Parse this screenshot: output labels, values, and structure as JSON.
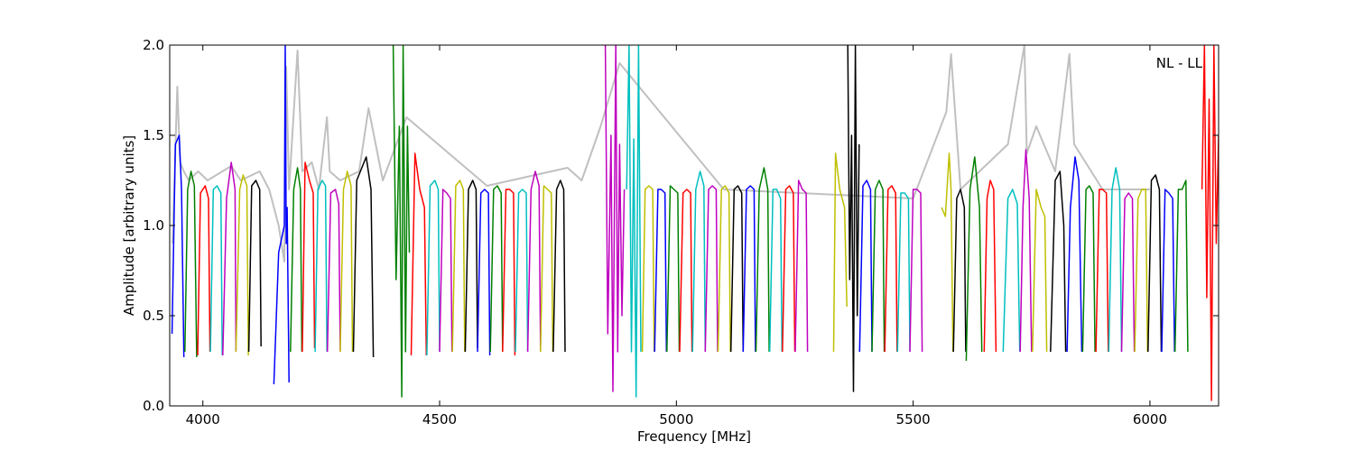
{
  "chart_data": {
    "type": "line",
    "title": "",
    "annotation": "NL - LL",
    "xlabel": "Frequency [MHz]",
    "ylabel": "Amplitude [arbitrary units]",
    "xlim": [
      3930,
      6145
    ],
    "ylim": [
      0.0,
      2.0
    ],
    "x_ticks": [
      4000,
      4500,
      5000,
      5500,
      6000
    ],
    "y_ticks": [
      0.0,
      0.5,
      1.0,
      1.5,
      2.0
    ],
    "x_tick_labels": [
      "4000",
      "4500",
      "5000",
      "5500",
      "6000"
    ],
    "y_tick_labels": [
      "0.0",
      "0.5",
      "1.0",
      "1.5",
      "2.0"
    ],
    "grid": false,
    "legend": null,
    "colors": [
      "#0000ff",
      "#008000",
      "#ff0000",
      "#00bfbf",
      "#bf00bf",
      "#bfbf00",
      "#000000"
    ],
    "background_series_color": "#c0c0c0",
    "band_start": 3935,
    "band_width": 26.5,
    "series": [
      {
        "color": "#c0c0c0",
        "x": [
          3936,
          3946,
          3952,
          3960,
          3970,
          3990,
          4010,
          4060,
          4080,
          4120,
          4140,
          4160,
          4172,
          4176,
          4182,
          4200,
          4210,
          4230,
          4245,
          4262,
          4268,
          4290,
          4330,
          4350,
          4380,
          4430,
          4600,
          4770,
          4800,
          4840,
          4880,
          5100,
          5500,
          5570,
          5580,
          5600,
          5700,
          5735,
          5740,
          5760,
          5800,
          5830,
          5840,
          5900,
          6000
        ],
        "y": [
          0.9,
          1.77,
          1.35,
          1.3,
          1.25,
          1.3,
          1.25,
          1.33,
          1.25,
          1.3,
          1.2,
          1.0,
          0.8,
          1.88,
          1.2,
          1.97,
          1.3,
          1.35,
          1.2,
          1.6,
          1.3,
          1.25,
          1.3,
          1.65,
          1.25,
          1.6,
          1.22,
          1.32,
          1.25,
          1.55,
          1.9,
          1.2,
          1.15,
          1.63,
          1.95,
          1.2,
          1.45,
          2.0,
          1.4,
          1.55,
          1.3,
          1.95,
          1.45,
          1.2,
          1.2
        ]
      },
      {
        "color": "#0000ff",
        "x": [
          3935,
          3942,
          3950,
          3955,
          3960
        ],
        "y": [
          0.4,
          1.45,
          1.5,
          1.2,
          0.27
        ]
      },
      {
        "color": "#008000",
        "x": [
          3962,
          3968,
          3975,
          3982,
          3987
        ],
        "y": [
          0.3,
          1.2,
          1.3,
          1.22,
          0.27
        ]
      },
      {
        "color": "#ff0000",
        "x": [
          3989,
          3995,
          4005,
          4012,
          4015
        ],
        "y": [
          0.28,
          1.18,
          1.22,
          1.15,
          0.3
        ]
      },
      {
        "color": "#00bfbf",
        "x": [
          4016,
          4022,
          4030,
          4038,
          4041
        ],
        "y": [
          0.3,
          1.2,
          1.22,
          1.18,
          0.28
        ]
      },
      {
        "color": "#bf00bf",
        "x": [
          4042,
          4050,
          4060,
          4068,
          4070
        ],
        "y": [
          0.28,
          1.15,
          1.35,
          1.2,
          0.3
        ]
      },
      {
        "color": "#bfbf00",
        "x": [
          4070,
          4078,
          4085,
          4093,
          4096
        ],
        "y": [
          0.3,
          1.2,
          1.28,
          1.22,
          0.28
        ]
      },
      {
        "color": "#000000",
        "x": [
          4097,
          4103,
          4112,
          4120,
          4123
        ],
        "y": [
          0.3,
          1.22,
          1.25,
          1.2,
          0.33
        ]
      },
      {
        "color": "#0000ff",
        "x": [
          4150,
          4160,
          4168,
          4172,
          4174,
          4176,
          4178,
          4182
        ],
        "y": [
          0.12,
          0.85,
          0.95,
          1.0,
          2.0,
          0.9,
          1.1,
          0.13
        ]
      },
      {
        "color": "#008000",
        "x": [
          4185,
          4192,
          4200,
          4206,
          4209
        ],
        "y": [
          0.3,
          1.2,
          1.32,
          1.2,
          0.3
        ]
      },
      {
        "color": "#ff0000",
        "x": [
          4210,
          4216,
          4225,
          4233,
          4236
        ],
        "y": [
          0.3,
          1.35,
          1.25,
          1.18,
          0.32
        ]
      },
      {
        "color": "#00bfbf",
        "x": [
          4237,
          4243,
          4252,
          4259,
          4262
        ],
        "y": [
          0.3,
          1.2,
          1.25,
          1.22,
          0.3
        ]
      },
      {
        "color": "#bf00bf",
        "x": [
          4263,
          4270,
          4280,
          4287,
          4290
        ],
        "y": [
          0.3,
          1.18,
          1.2,
          1.12,
          0.3
        ]
      },
      {
        "color": "#bfbf00",
        "x": [
          4290,
          4297,
          4305,
          4313,
          4316
        ],
        "y": [
          0.3,
          1.2,
          1.3,
          1.22,
          0.3
        ]
      },
      {
        "color": "#000000",
        "x": [
          4318,
          4325,
          4345,
          4355,
          4360
        ],
        "y": [
          0.3,
          1.25,
          1.38,
          1.2,
          0.27
        ]
      },
      {
        "color": "#008000",
        "x": [
          4402,
          4408,
          4415,
          4420,
          4423,
          4428,
          4432,
          4436
        ],
        "y": [
          2.0,
          0.7,
          1.55,
          0.05,
          2.0,
          0.3,
          1.55,
          0.85
        ]
      },
      {
        "color": "#ff0000",
        "x": [
          4440,
          4448,
          4458,
          4468,
          4472
        ],
        "y": [
          0.28,
          1.4,
          1.2,
          1.1,
          0.28
        ]
      },
      {
        "color": "#00bfbf",
        "x": [
          4473,
          4480,
          4490,
          4497,
          4500
        ],
        "y": [
          0.28,
          1.22,
          1.25,
          1.2,
          0.3
        ]
      },
      {
        "color": "#bf00bf",
        "x": [
          4500,
          4507,
          4515,
          4523,
          4526
        ],
        "y": [
          0.3,
          1.2,
          1.18,
          1.15,
          0.3
        ]
      },
      {
        "color": "#bfbf00",
        "x": [
          4527,
          4534,
          4543,
          4550,
          4553
        ],
        "y": [
          0.3,
          1.22,
          1.25,
          1.2,
          0.3
        ]
      },
      {
        "color": "#000000",
        "x": [
          4554,
          4561,
          4570,
          4577,
          4580
        ],
        "y": [
          0.3,
          1.2,
          1.25,
          1.2,
          0.32
        ]
      },
      {
        "color": "#0000ff",
        "x": [
          4580,
          4587,
          4595,
          4603,
          4606
        ],
        "y": [
          0.3,
          1.18,
          1.2,
          1.18,
          0.28
        ]
      },
      {
        "color": "#008000",
        "x": [
          4607,
          4614,
          4622,
          4630,
          4633
        ],
        "y": [
          0.3,
          1.2,
          1.22,
          1.18,
          0.3
        ]
      },
      {
        "color": "#ff0000",
        "x": [
          4633,
          4640,
          4648,
          4656,
          4659
        ],
        "y": [
          0.3,
          1.2,
          1.2,
          1.18,
          0.28
        ]
      },
      {
        "color": "#00bfbf",
        "x": [
          4660,
          4667,
          4675,
          4683,
          4686
        ],
        "y": [
          0.3,
          1.18,
          1.2,
          1.18,
          0.3
        ]
      },
      {
        "color": "#bf00bf",
        "x": [
          4686,
          4693,
          4702,
          4710,
          4713
        ],
        "y": [
          0.3,
          1.2,
          1.3,
          1.22,
          0.3
        ]
      },
      {
        "color": "#bfbf00",
        "x": [
          4713,
          4720,
          4728,
          4736,
          4739
        ],
        "y": [
          0.3,
          1.22,
          1.2,
          1.18,
          0.3
        ]
      },
      {
        "color": "#000000",
        "x": [
          4740,
          4747,
          4755,
          4762,
          4765
        ],
        "y": [
          0.3,
          1.2,
          1.25,
          1.2,
          0.3
        ]
      },
      {
        "color": "#bf00bf",
        "x": [
          4850,
          4855,
          4862,
          4866,
          4872,
          4876,
          4880,
          4885,
          4890
        ],
        "y": [
          2.0,
          0.4,
          1.5,
          0.08,
          2.0,
          0.3,
          1.45,
          0.5,
          1.2
        ]
      },
      {
        "color": "#00bfbf",
        "x": [
          4895,
          4900,
          4905,
          4910,
          4915,
          4920,
          4925
        ],
        "y": [
          1.2,
          2.0,
          0.3,
          1.48,
          0.05,
          2.0,
          0.3
        ]
      },
      {
        "color": "#bfbf00",
        "x": [
          4928,
          4934,
          4942,
          4950,
          4953
        ],
        "y": [
          0.3,
          1.2,
          1.22,
          1.2,
          0.3
        ]
      },
      {
        "color": "#0000ff",
        "x": [
          4954,
          4961,
          4968,
          4976,
          4979
        ],
        "y": [
          0.3,
          1.2,
          1.2,
          1.18,
          0.3
        ]
      },
      {
        "color": "#008000",
        "x": [
          4980,
          4987,
          4995,
          5003,
          5006
        ],
        "y": [
          0.3,
          1.22,
          1.2,
          1.18,
          0.3
        ]
      },
      {
        "color": "#ff0000",
        "x": [
          5007,
          5014,
          5022,
          5030,
          5033
        ],
        "y": [
          0.3,
          1.18,
          1.2,
          1.18,
          0.3
        ]
      },
      {
        "color": "#00bfbf",
        "x": [
          5034,
          5041,
          5050,
          5058,
          5061
        ],
        "y": [
          0.3,
          1.2,
          1.3,
          1.22,
          0.3
        ]
      },
      {
        "color": "#bf00bf",
        "x": [
          5061,
          5068,
          5076,
          5084,
          5087
        ],
        "y": [
          0.3,
          1.2,
          1.22,
          1.2,
          0.3
        ]
      },
      {
        "color": "#bfbf00",
        "x": [
          5088,
          5095,
          5103,
          5111,
          5114
        ],
        "y": [
          0.3,
          1.2,
          1.22,
          1.18,
          0.3
        ]
      },
      {
        "color": "#000000",
        "x": [
          5115,
          5122,
          5130,
          5138,
          5141
        ],
        "y": [
          0.3,
          1.2,
          1.22,
          1.18,
          0.3
        ]
      },
      {
        "color": "#0000ff",
        "x": [
          5141,
          5148,
          5156,
          5164,
          5167
        ],
        "y": [
          0.3,
          1.2,
          1.22,
          1.2,
          0.3
        ]
      },
      {
        "color": "#008000",
        "x": [
          5168,
          5175,
          5185,
          5193,
          5196
        ],
        "y": [
          0.3,
          1.2,
          1.32,
          1.2,
          0.3
        ]
      },
      {
        "color": "#00bfbf",
        "x": [
          5197,
          5204,
          5212,
          5220,
          5223
        ],
        "y": [
          0.3,
          1.2,
          1.2,
          1.15,
          0.3
        ]
      },
      {
        "color": "#ff0000",
        "x": [
          5224,
          5231,
          5239,
          5247,
          5250
        ],
        "y": [
          0.3,
          1.2,
          1.22,
          1.18,
          0.3
        ]
      },
      {
        "color": "#bf00bf",
        "x": [
          5251,
          5258,
          5266,
          5274,
          5277
        ],
        "y": [
          0.3,
          1.25,
          1.2,
          1.18,
          0.3
        ]
      },
      {
        "color": "#bfbf00",
        "x": [
          5332,
          5336,
          5345,
          5355,
          5360
        ],
        "y": [
          0.3,
          1.4,
          1.2,
          1.1,
          0.55
        ]
      },
      {
        "color": "#000000",
        "x": [
          5362,
          5366,
          5370,
          5374,
          5378,
          5382,
          5386
        ],
        "y": [
          2.0,
          0.7,
          1.5,
          0.08,
          2.0,
          0.5,
          1.45
        ]
      },
      {
        "color": "#0000ff",
        "x": [
          5387,
          5394,
          5402,
          5410,
          5413
        ],
        "y": [
          0.3,
          1.22,
          1.25,
          1.2,
          0.3
        ]
      },
      {
        "color": "#008000",
        "x": [
          5413,
          5420,
          5428,
          5436,
          5439
        ],
        "y": [
          0.3,
          1.2,
          1.25,
          1.2,
          0.3
        ]
      },
      {
        "color": "#ff0000",
        "x": [
          5440,
          5447,
          5455,
          5463,
          5466
        ],
        "y": [
          0.3,
          1.2,
          1.22,
          1.18,
          0.3
        ]
      },
      {
        "color": "#00bfbf",
        "x": [
          5467,
          5474,
          5482,
          5490,
          5493
        ],
        "y": [
          0.3,
          1.18,
          1.18,
          1.15,
          0.3
        ]
      },
      {
        "color": "#bf00bf",
        "x": [
          5493,
          5500,
          5508,
          5516,
          5519
        ],
        "y": [
          0.3,
          1.2,
          1.2,
          1.18,
          0.3
        ]
      },
      {
        "color": "#bfbf00",
        "x": [
          5560,
          5568,
          5576,
          5580,
          5584
        ],
        "y": [
          1.1,
          1.05,
          1.4,
          1.2,
          0.3
        ]
      },
      {
        "color": "#000000",
        "x": [
          5585,
          5592,
          5600,
          5608,
          5611
        ],
        "y": [
          0.3,
          1.15,
          1.2,
          1.1,
          0.3
        ]
      },
      {
        "color": "#008000",
        "x": [
          5612,
          5620,
          5630,
          5640,
          5645
        ],
        "y": [
          0.25,
          1.2,
          1.38,
          1.1,
          0.3
        ]
      },
      {
        "color": "#ff0000",
        "x": [
          5650,
          5656,
          5663,
          5670,
          5675
        ],
        "y": [
          0.3,
          1.15,
          1.25,
          1.2,
          0.3
        ]
      },
      {
        "color": "#00bfbf",
        "x": [
          5690,
          5700,
          5710,
          5720,
          5725
        ],
        "y": [
          0.3,
          1.15,
          1.2,
          1.12,
          0.3
        ]
      },
      {
        "color": "#bf00bf",
        "x": [
          5726,
          5732,
          5738,
          5745,
          5750
        ],
        "y": [
          0.3,
          1.1,
          1.42,
          1.15,
          0.3
        ]
      },
      {
        "color": "#bfbf00",
        "x": [
          5752,
          5760,
          5770,
          5778,
          5782
        ],
        "y": [
          0.3,
          1.2,
          1.1,
          1.05,
          0.3
        ]
      },
      {
        "color": "#000000",
        "x": [
          5790,
          5800,
          5810,
          5818,
          5822
        ],
        "y": [
          0.3,
          1.25,
          1.3,
          1.0,
          0.3
        ]
      },
      {
        "color": "#0000ff",
        "x": [
          5825,
          5832,
          5842,
          5850,
          5856
        ],
        "y": [
          0.3,
          1.1,
          1.38,
          1.25,
          0.3
        ]
      },
      {
        "color": "#008000",
        "x": [
          5858,
          5865,
          5872,
          5880,
          5884
        ],
        "y": [
          0.3,
          1.2,
          1.22,
          1.18,
          0.3
        ]
      },
      {
        "color": "#ff0000",
        "x": [
          5886,
          5893,
          5900,
          5908,
          5912
        ],
        "y": [
          0.3,
          1.2,
          1.2,
          1.18,
          0.3
        ]
      },
      {
        "color": "#00bfbf",
        "x": [
          5913,
          5920,
          5928,
          5936,
          5940
        ],
        "y": [
          0.3,
          1.2,
          1.32,
          1.2,
          0.3
        ]
      },
      {
        "color": "#bf00bf",
        "x": [
          5940,
          5947,
          5955,
          5963,
          5967
        ],
        "y": [
          0.3,
          1.15,
          1.18,
          1.15,
          0.3
        ]
      },
      {
        "color": "#bfbf00",
        "x": [
          5968,
          5975,
          5983,
          5991,
          5995
        ],
        "y": [
          0.3,
          1.15,
          1.2,
          1.2,
          0.3
        ]
      },
      {
        "color": "#000000",
        "x": [
          5996,
          6003,
          6012,
          6020,
          6024
        ],
        "y": [
          0.3,
          1.25,
          1.28,
          1.2,
          0.3
        ]
      },
      {
        "color": "#0000ff",
        "x": [
          6025,
          6032,
          6040,
          6048,
          6052
        ],
        "y": [
          0.3,
          1.2,
          1.18,
          1.15,
          0.3
        ]
      },
      {
        "color": "#008000",
        "x": [
          6053,
          6060,
          6068,
          6076,
          6080
        ],
        "y": [
          0.3,
          1.2,
          1.2,
          1.25,
          0.3
        ]
      },
      {
        "color": "#ff0000",
        "x": [
          6110,
          6115,
          6120,
          6125,
          6130,
          6135,
          6140,
          6145
        ],
        "y": [
          1.2,
          2.0,
          0.6,
          1.7,
          0.03,
          2.0,
          0.9,
          1.5
        ]
      }
    ]
  }
}
